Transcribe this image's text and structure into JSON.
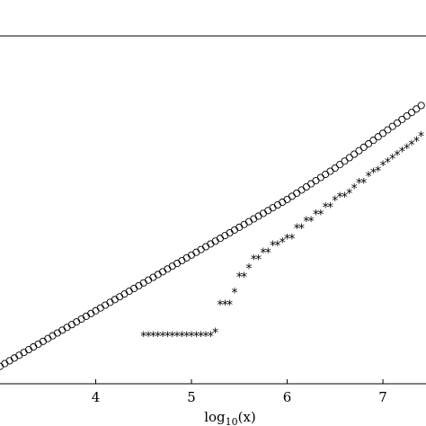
{
  "chart_data": {
    "type": "scatter",
    "title": "",
    "xlabel": "log10(x)",
    "xlabel_parts": {
      "base": "log",
      "sub": "10",
      "arg": "(x)"
    },
    "ylabel": "",
    "xlim": [
      3.0,
      7.45
    ],
    "ylim": [
      0.0,
      1.0
    ],
    "xticks": [
      4,
      5,
      6,
      7
    ],
    "xtick_labels": [
      "4",
      "5",
      "6",
      "7"
    ],
    "grid": false,
    "legend": "none",
    "series": [
      {
        "marker": "circle",
        "color": "#000000",
        "x": [
          3.0,
          3.05,
          3.1,
          3.15,
          3.2,
          3.25,
          3.3,
          3.35,
          3.4,
          3.45,
          3.5,
          3.55,
          3.6,
          3.65,
          3.7,
          3.75,
          3.8,
          3.85,
          3.9,
          3.95,
          4.0,
          4.05,
          4.1,
          4.15,
          4.2,
          4.25,
          4.3,
          4.35,
          4.4,
          4.45,
          4.5,
          4.55,
          4.6,
          4.65,
          4.7,
          4.75,
          4.8,
          4.85,
          4.9,
          4.95,
          5.0,
          5.05,
          5.1,
          5.15,
          5.2,
          5.25,
          5.3,
          5.35,
          5.4,
          5.45,
          5.5,
          5.55,
          5.6,
          5.65,
          5.7,
          5.75,
          5.8,
          5.85,
          5.9,
          5.95,
          6.0,
          6.05,
          6.1,
          6.15,
          6.2,
          6.25,
          6.3,
          6.35,
          6.4,
          6.45,
          6.5,
          6.55,
          6.6,
          6.65,
          6.7,
          6.75,
          6.8,
          6.85,
          6.9,
          6.95,
          7.0,
          7.05,
          7.1,
          7.15,
          7.2,
          7.25,
          7.3,
          7.35,
          7.4
        ],
        "y": [
          0.05,
          0.058,
          0.066,
          0.074,
          0.082,
          0.09,
          0.098,
          0.106,
          0.114,
          0.122,
          0.13,
          0.138,
          0.146,
          0.154,
          0.162,
          0.17,
          0.178,
          0.186,
          0.194,
          0.202,
          0.21,
          0.218,
          0.226,
          0.234,
          0.242,
          0.25,
          0.258,
          0.266,
          0.274,
          0.282,
          0.29,
          0.298,
          0.306,
          0.314,
          0.322,
          0.33,
          0.338,
          0.346,
          0.354,
          0.362,
          0.37,
          0.378,
          0.386,
          0.394,
          0.402,
          0.41,
          0.418,
          0.426,
          0.434,
          0.442,
          0.45,
          0.458,
          0.466,
          0.474,
          0.482,
          0.49,
          0.498,
          0.506,
          0.514,
          0.522,
          0.53,
          0.539,
          0.548,
          0.557,
          0.566,
          0.575,
          0.584,
          0.593,
          0.602,
          0.611,
          0.62,
          0.63,
          0.64,
          0.65,
          0.66,
          0.67,
          0.68,
          0.69,
          0.7,
          0.71,
          0.72,
          0.73,
          0.74,
          0.75,
          0.76,
          0.77,
          0.78,
          0.79,
          0.8
        ]
      },
      {
        "marker": "star",
        "color": "#000000",
        "x": [
          4.5,
          4.55,
          4.6,
          4.65,
          4.7,
          4.75,
          4.8,
          4.85,
          4.9,
          4.95,
          5.0,
          5.05,
          5.1,
          5.15,
          5.2,
          5.25,
          5.3,
          5.35,
          5.4,
          5.45,
          5.5,
          5.55,
          5.6,
          5.65,
          5.7,
          5.75,
          5.8,
          5.85,
          5.9,
          5.95,
          6.0,
          6.05,
          6.1,
          6.15,
          6.2,
          6.25,
          6.3,
          6.35,
          6.4,
          6.45,
          6.5,
          6.55,
          6.6,
          6.65,
          6.7,
          6.75,
          6.8,
          6.85,
          6.9,
          6.95,
          7.0,
          7.05,
          7.1,
          7.15,
          7.2,
          7.25,
          7.3,
          7.35,
          7.4
        ],
        "y": [
          0.14,
          0.14,
          0.14,
          0.14,
          0.14,
          0.14,
          0.14,
          0.14,
          0.14,
          0.14,
          0.14,
          0.14,
          0.14,
          0.14,
          0.14,
          0.15,
          0.23,
          0.23,
          0.23,
          0.265,
          0.31,
          0.31,
          0.335,
          0.36,
          0.36,
          0.38,
          0.38,
          0.4,
          0.4,
          0.41,
          0.42,
          0.42,
          0.45,
          0.45,
          0.47,
          0.47,
          0.49,
          0.49,
          0.51,
          0.51,
          0.53,
          0.54,
          0.54,
          0.55,
          0.565,
          0.58,
          0.58,
          0.6,
          0.61,
          0.615,
          0.63,
          0.64,
          0.65,
          0.66,
          0.67,
          0.68,
          0.69,
          0.7,
          0.715
        ]
      }
    ]
  }
}
